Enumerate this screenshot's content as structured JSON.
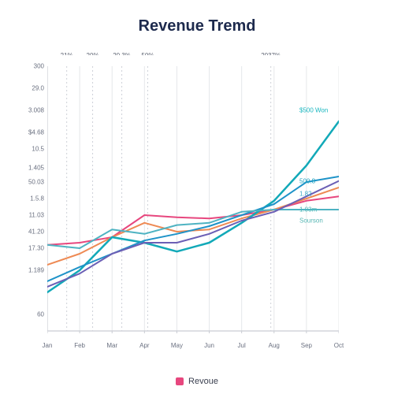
{
  "title": "Revenue Tremd",
  "chart": {
    "type": "line",
    "background_color": "#ffffff",
    "axis_color": "#c9ccd3",
    "gridline_color": "#e5e7ea",
    "vline_color": "#ced1d8",
    "ylim": [
      60,
      300
    ],
    "xlim": [
      0,
      9
    ],
    "x_categories": [
      "Jan",
      "Feb",
      "Mar",
      "Apr",
      "May",
      "Jun",
      "Jul",
      "Aug",
      "Sep",
      "Oct"
    ],
    "y_ticks": [
      {
        "value": 300,
        "label": "300"
      },
      {
        "value": 280,
        "label": "29.0"
      },
      {
        "value": 260,
        "label": "3.008"
      },
      {
        "value": 240,
        "label": "$4.68"
      },
      {
        "value": 225,
        "label": "10.5"
      },
      {
        "value": 208,
        "label": "1.405"
      },
      {
        "value": 195,
        "label": "50.03"
      },
      {
        "value": 180,
        "label": "1.5.8"
      },
      {
        "value": 165,
        "label": "11.03"
      },
      {
        "value": 150,
        "label": "41.20"
      },
      {
        "value": 135,
        "label": "17.30"
      },
      {
        "value": 115,
        "label": "1.189"
      },
      {
        "value": 75,
        "label": "60"
      }
    ],
    "top_annotations": [
      {
        "x_index": 0.6,
        "label": "21%"
      },
      {
        "x_index": 1.4,
        "label": "20%"
      },
      {
        "x_index": 2.3,
        "label": "20.3%"
      },
      {
        "x_index": 3.1,
        "label": "50%"
      },
      {
        "x_index": 6.9,
        "label": "2037%"
      }
    ],
    "right_annotations": [
      {
        "y": 260,
        "label": "$500 Won",
        "color": "#18b6bf"
      },
      {
        "y": 196,
        "label": "500.8",
        "color": "#19a0bf"
      },
      {
        "y": 184,
        "label": "1.82",
        "color": "#3aa9c9"
      },
      {
        "y": 170,
        "label": "1.03m",
        "color": "#4bb8b6"
      },
      {
        "y": 160,
        "label": "Sourson",
        "color": "#55b6b3"
      }
    ],
    "series": [
      {
        "name": "revenue-a",
        "color": "#e7477e",
        "width": 2,
        "values": [
          138,
          140,
          145,
          165,
          163,
          162,
          165,
          170,
          178,
          182
        ]
      },
      {
        "name": "revenue-b",
        "color": "#ee8a54",
        "width": 2,
        "values": [
          120,
          130,
          145,
          158,
          150,
          152,
          162,
          170,
          180,
          190
        ]
      },
      {
        "name": "revenue-c",
        "color": "#12a9b8",
        "width": 2.5,
        "values": [
          95,
          115,
          145,
          140,
          132,
          140,
          158,
          178,
          210,
          250
        ]
      },
      {
        "name": "revenue-d",
        "color": "#1e93c8",
        "width": 2,
        "values": [
          105,
          118,
          130,
          142,
          148,
          155,
          165,
          175,
          195,
          200
        ]
      },
      {
        "name": "revenue-e",
        "color": "#4eb3c2",
        "width": 2,
        "values": [
          138,
          135,
          152,
          148,
          156,
          158,
          168,
          170,
          170,
          170
        ]
      },
      {
        "name": "revenue-f",
        "color": "#6b5fb5",
        "width": 2,
        "values": [
          100,
          112,
          130,
          140,
          140,
          148,
          160,
          168,
          182,
          196
        ]
      }
    ],
    "legend": {
      "label": "Revoue",
      "swatch_color": "#e7477e"
    },
    "title_fontsize": 20,
    "tick_fontsize": 8,
    "annotation_fontsize": 8
  }
}
